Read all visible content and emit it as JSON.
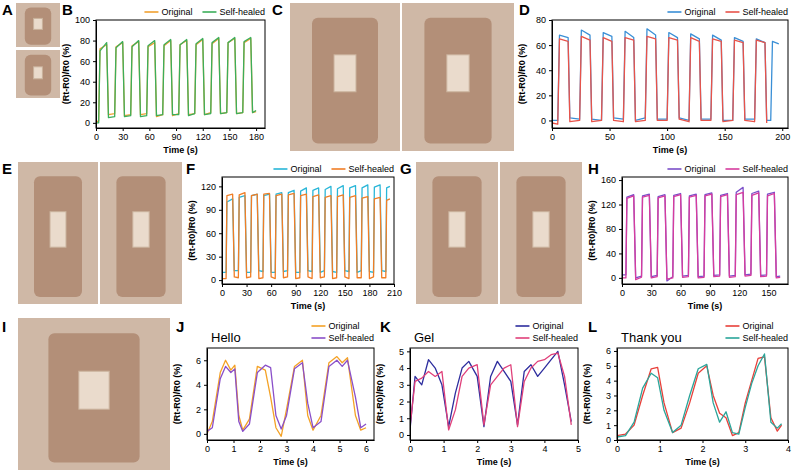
{
  "photo_panels": [
    {
      "label": "A"
    },
    {
      "label": "C"
    },
    {
      "label": "E"
    },
    {
      "label": "G"
    },
    {
      "label": "I"
    }
  ],
  "chart_data": [
    {
      "type": "line",
      "panel": "B",
      "x_label": "Time (s)",
      "y_label": "(Rt-R0)/R0 (%)",
      "xlim": [
        0,
        190
      ],
      "xticks": [
        0,
        30,
        60,
        90,
        120,
        150,
        180
      ],
      "ylim": [
        -5,
        100
      ],
      "yticks": [
        0,
        20,
        40,
        60,
        80,
        100
      ],
      "grid": false,
      "legend": "upper right",
      "x": [
        0,
        3,
        4.5,
        12,
        14,
        21,
        22.5,
        30,
        32,
        39,
        40.5,
        48,
        50,
        57,
        58.5,
        66,
        68,
        75,
        76.5,
        84,
        86,
        93,
        94.5,
        102,
        104,
        111,
        112.5,
        120,
        122,
        129,
        130.5,
        138,
        140,
        147,
        148.5,
        156,
        158,
        165,
        166.5,
        174,
        176,
        180
      ],
      "series": [
        {
          "name": "Original",
          "color": "#f0a030",
          "values": [
            1,
            2,
            72,
            76,
            8,
            9,
            74,
            78,
            7,
            8,
            75,
            79,
            8,
            9,
            74,
            78,
            6,
            8,
            75,
            80,
            7,
            9,
            76,
            80,
            8,
            9,
            76,
            81,
            8,
            10,
            77,
            82,
            9,
            10,
            78,
            82,
            9,
            10,
            78,
            82,
            10,
            11
          ]
        },
        {
          "name": "Self-healed",
          "color": "#3cae5a",
          "values": [
            0,
            0,
            70,
            78,
            5,
            6,
            73,
            79,
            6,
            7,
            74,
            80,
            6,
            7,
            75,
            80,
            7,
            8,
            76,
            81,
            8,
            8,
            76,
            81,
            7,
            9,
            77,
            82,
            8,
            9,
            78,
            83,
            9,
            10,
            78,
            83,
            9,
            10,
            79,
            83,
            10,
            12
          ]
        }
      ]
    },
    {
      "type": "line",
      "panel": "D",
      "x_label": "Time (s)",
      "y_label": "(Rt-R0)/R0 (%)",
      "xlim": [
        0,
        205
      ],
      "xticks": [
        0,
        50,
        100,
        150,
        200
      ],
      "ylim": [
        -6,
        80
      ],
      "yticks": [
        0,
        20,
        40,
        60,
        80
      ],
      "grid": false,
      "legend": "upper right",
      "x": [
        0,
        5,
        6.5,
        14,
        15.5,
        24,
        25.5,
        33,
        34.5,
        43,
        44.5,
        52,
        53.5,
        62,
        63.5,
        71,
        72.5,
        81,
        82.5,
        90,
        91.5,
        100,
        101.5,
        109,
        110.5,
        119,
        120.5,
        128,
        129.5,
        138,
        139.5,
        147,
        148.5,
        157,
        158.5,
        166,
        167.5,
        176,
        177.5,
        185,
        186.5,
        190,
        191.5,
        197
      ],
      "series": [
        {
          "name": "Original",
          "color": "#3a8fd6",
          "values": [
            0,
            0,
            68,
            66,
            2,
            1,
            72,
            68,
            1,
            0,
            70,
            67,
            2,
            1,
            71,
            66,
            0,
            2,
            73,
            68,
            1,
            1,
            70,
            66,
            2,
            0,
            69,
            65,
            1,
            1,
            68,
            64,
            0,
            0,
            66,
            63,
            1,
            1,
            65,
            62,
            0,
            0,
            63,
            61
          ]
        },
        {
          "name": "Self-healed",
          "color": "#e8534a",
          "values": [
            -2,
            -3,
            65,
            63,
            -1,
            0,
            67,
            64,
            -1,
            0,
            66,
            63,
            0,
            -1,
            66,
            64,
            -1,
            0,
            67,
            65,
            0,
            0,
            66,
            64,
            1,
            -1,
            66,
            63,
            0,
            0,
            65,
            63,
            -1,
            0,
            64,
            62,
            0,
            -1,
            64,
            62,
            -2,
            null,
            null,
            null
          ]
        }
      ]
    },
    {
      "type": "line",
      "panel": "F",
      "x_label": "Time (s)",
      "y_label": "(Rt-R0)/R0 (%)",
      "xlim": [
        0,
        210
      ],
      "xticks": [
        0,
        30,
        60,
        90,
        120,
        150,
        180,
        210
      ],
      "ylim": [
        -5,
        132
      ],
      "yticks": [
        0,
        30,
        60,
        90,
        120
      ],
      "grid": false,
      "legend": "upper right",
      "x": [
        0,
        5,
        6,
        13,
        15,
        20,
        21,
        28,
        30,
        35,
        36,
        43,
        45,
        50,
        51,
        58,
        60,
        65,
        66,
        73,
        75,
        80,
        81,
        88,
        90,
        95,
        96,
        103,
        105,
        110,
        111,
        118,
        120,
        125,
        126,
        133,
        135,
        140,
        141,
        148,
        150,
        155,
        156,
        163,
        165,
        170,
        171,
        178,
        180,
        185,
        186,
        193,
        195,
        200,
        201,
        205
      ],
      "series": [
        {
          "name": "Original",
          "color": "#29b6d8",
          "values": [
            10,
            10,
            100,
            104,
            12,
            12,
            106,
            108,
            10,
            10,
            108,
            110,
            12,
            11,
            108,
            110,
            10,
            10,
            110,
            112,
            11,
            12,
            112,
            115,
            10,
            10,
            114,
            118,
            12,
            11,
            115,
            118,
            10,
            12,
            116,
            120,
            11,
            10,
            117,
            121,
            12,
            11,
            118,
            121,
            10,
            12,
            118,
            122,
            11,
            10,
            119,
            122,
            12,
            11,
            118,
            120
          ]
        },
        {
          "name": "Self-healed",
          "color": "#f07e26",
          "values": [
            2,
            2,
            108,
            110,
            4,
            3,
            109,
            112,
            3,
            4,
            108,
            110,
            2,
            3,
            110,
            111,
            4,
            2,
            108,
            110,
            3,
            4,
            109,
            111,
            2,
            3,
            108,
            110,
            4,
            2,
            107,
            109,
            3,
            4,
            106,
            108,
            2,
            3,
            107,
            109,
            4,
            2,
            106,
            108,
            3,
            3,
            105,
            107,
            2,
            4,
            104,
            106,
            3,
            3,
            102,
            104
          ]
        }
      ]
    },
    {
      "type": "line",
      "panel": "H",
      "x_label": "Time (s)",
      "y_label": "(Rt-R0)/R0 (%)",
      "xlim": [
        0,
        170
      ],
      "xticks": [
        0,
        30,
        60,
        90,
        120,
        150
      ],
      "ylim": [
        -10,
        165
      ],
      "yticks": [
        0,
        40,
        80,
        120,
        160
      ],
      "grid": false,
      "legend": "upper right",
      "x": [
        0,
        4,
        5,
        12,
        14,
        20,
        21,
        28,
        30,
        36,
        37,
        44,
        46,
        52,
        53,
        60,
        62,
        68,
        69,
        76,
        78,
        84,
        85,
        92,
        94,
        100,
        101,
        108,
        110,
        116,
        117,
        124,
        126,
        132,
        133,
        140,
        142,
        148,
        149,
        156,
        158,
        162
      ],
      "series": [
        {
          "name": "Original",
          "color": "#7b4fc9",
          "values": [
            5,
            5,
            132,
            136,
            0,
            3,
            134,
            137,
            2,
            4,
            133,
            136,
            -5,
            2,
            135,
            138,
            3,
            4,
            134,
            137,
            2,
            3,
            136,
            139,
            4,
            5,
            135,
            138,
            3,
            4,
            140,
            148,
            5,
            6,
            138,
            142,
            4,
            5,
            137,
            140,
            2,
            3
          ]
        },
        {
          "name": "Self-healed",
          "color": "#d63c9e",
          "values": [
            0,
            0,
            130,
            134,
            -3,
            1,
            132,
            135,
            0,
            2,
            131,
            134,
            -2,
            0,
            133,
            136,
            1,
            2,
            132,
            135,
            0,
            1,
            134,
            137,
            2,
            3,
            133,
            136,
            1,
            2,
            136,
            140,
            3,
            4,
            135,
            139,
            2,
            3,
            134,
            138,
            0,
            1
          ]
        }
      ]
    },
    {
      "type": "line",
      "panel": "J",
      "x_label": "Time (s)",
      "y_label": "(Rt-R0)/R0 (%)",
      "annotations": [
        "Hello"
      ],
      "xlim": [
        0,
        6.3
      ],
      "xticks": [
        0,
        1,
        2,
        3,
        4,
        5,
        6
      ],
      "ylim": [
        -0.5,
        7
      ],
      "yticks": [
        0,
        2,
        4,
        6
      ],
      "grid": false,
      "legend": "upper right",
      "x": [
        0,
        0.2,
        0.5,
        0.7,
        0.9,
        1.05,
        1.2,
        1.35,
        1.6,
        1.9,
        2.2,
        2.4,
        2.6,
        2.8,
        3.0,
        3.3,
        3.6,
        3.8,
        4.0,
        4.3,
        4.6,
        4.9,
        5.1,
        5.3,
        5.6,
        5.8,
        6.0
      ],
      "series": [
        {
          "name": "Original",
          "color": "#f4a226",
          "values": [
            0,
            1,
            5,
            6,
            5.2,
            5.6,
            1.5,
            0.3,
            1.2,
            5.5,
            5.2,
            3.0,
            0.5,
            -0.2,
            2,
            5.5,
            6,
            1.5,
            0.3,
            1.5,
            5.8,
            6.3,
            5.8,
            6.2,
            1.5,
            0.3,
            0.5
          ]
        },
        {
          "name": "Self-healed",
          "color": "#8a4fc9",
          "values": [
            0.2,
            0.5,
            4.5,
            5.5,
            5.0,
            5.3,
            1.0,
            0.2,
            0.8,
            5.0,
            5.6,
            5.4,
            1.5,
            0.4,
            1.5,
            5.3,
            5.8,
            2.5,
            0.5,
            1.0,
            5.5,
            6.0,
            5.5,
            6.0,
            3.0,
            0.5,
            0.8
          ]
        }
      ]
    },
    {
      "type": "line",
      "panel": "K",
      "x_label": "Time (s)",
      "y_label": "(Rt-R0)/R0 (%)",
      "annotations": [
        "Gel"
      ],
      "xlim": [
        0,
        5
      ],
      "xticks": [
        0,
        1,
        2,
        3,
        4,
        5
      ],
      "ylim": [
        -0.3,
        5.2
      ],
      "yticks": [
        0,
        1,
        2,
        3,
        4,
        5
      ],
      "grid": false,
      "legend": "upper right",
      "x": [
        0,
        0.15,
        0.35,
        0.55,
        0.75,
        0.95,
        1.15,
        1.35,
        1.55,
        1.75,
        2.0,
        2.2,
        2.4,
        2.6,
        2.8,
        3.0,
        3.2,
        3.4,
        3.6,
        3.8,
        4.0,
        4.2,
        4.4,
        4.6,
        4.8
      ],
      "series": [
        {
          "name": "Original",
          "color": "#2d2d9e",
          "values": [
            0.3,
            3.5,
            3.0,
            4.5,
            4.0,
            3.0,
            0.5,
            2.5,
            4.0,
            4.4,
            3.5,
            0.5,
            3.5,
            4.4,
            3.8,
            3.2,
            0.6,
            3.8,
            4.2,
            3.5,
            4.0,
            4.5,
            5.0,
            3.0,
            0.8
          ]
        },
        {
          "name": "Self-healed",
          "color": "#e0407a",
          "values": [
            0.5,
            3.2,
            3.4,
            3.8,
            3.5,
            3.8,
            0.3,
            1.5,
            3.5,
            4.0,
            4.2,
            0.6,
            3.0,
            3.5,
            4.0,
            4.2,
            0.5,
            3.2,
            4.0,
            4.4,
            4.5,
            4.8,
            4.9,
            3.5,
            0.6
          ]
        }
      ]
    },
    {
      "type": "line",
      "panel": "L",
      "x_label": "Time (s)",
      "y_label": "(Rt-R0)/R0 (%)",
      "annotations": [
        "Thank you"
      ],
      "xlim": [
        0,
        4
      ],
      "xticks": [
        0,
        1,
        2,
        3,
        4
      ],
      "ylim": [
        0,
        6.2
      ],
      "yticks": [
        0,
        1,
        2,
        3,
        4,
        5,
        6
      ],
      "grid": false,
      "legend": "upper right",
      "x": [
        0,
        0.2,
        0.4,
        0.6,
        0.8,
        0.95,
        1.1,
        1.3,
        1.5,
        1.7,
        1.9,
        2.1,
        2.25,
        2.4,
        2.55,
        2.7,
        2.85,
        3.0,
        3.15,
        3.3,
        3.45,
        3.6,
        3.75,
        3.85
      ],
      "series": [
        {
          "name": "Original",
          "color": "#e8403a",
          "values": [
            0.3,
            0.4,
            1.0,
            3.0,
            4.8,
            4.9,
            2.5,
            0.5,
            0.8,
            2.5,
            4.5,
            5.0,
            3.0,
            1.8,
            1.5,
            0.3,
            0.5,
            2.5,
            4.0,
            5.5,
            5.6,
            1.5,
            0.6,
            1.0
          ]
        },
        {
          "name": "Self-healed",
          "color": "#2aa59a",
          "values": [
            0.2,
            0.3,
            1.2,
            3.5,
            4.5,
            4.2,
            2.0,
            0.5,
            1.0,
            3.0,
            4.8,
            5.1,
            2.5,
            1.2,
            1.9,
            0.5,
            0.4,
            2.2,
            3.8,
            5.0,
            5.8,
            1.2,
            0.8,
            1.1
          ]
        }
      ]
    }
  ]
}
